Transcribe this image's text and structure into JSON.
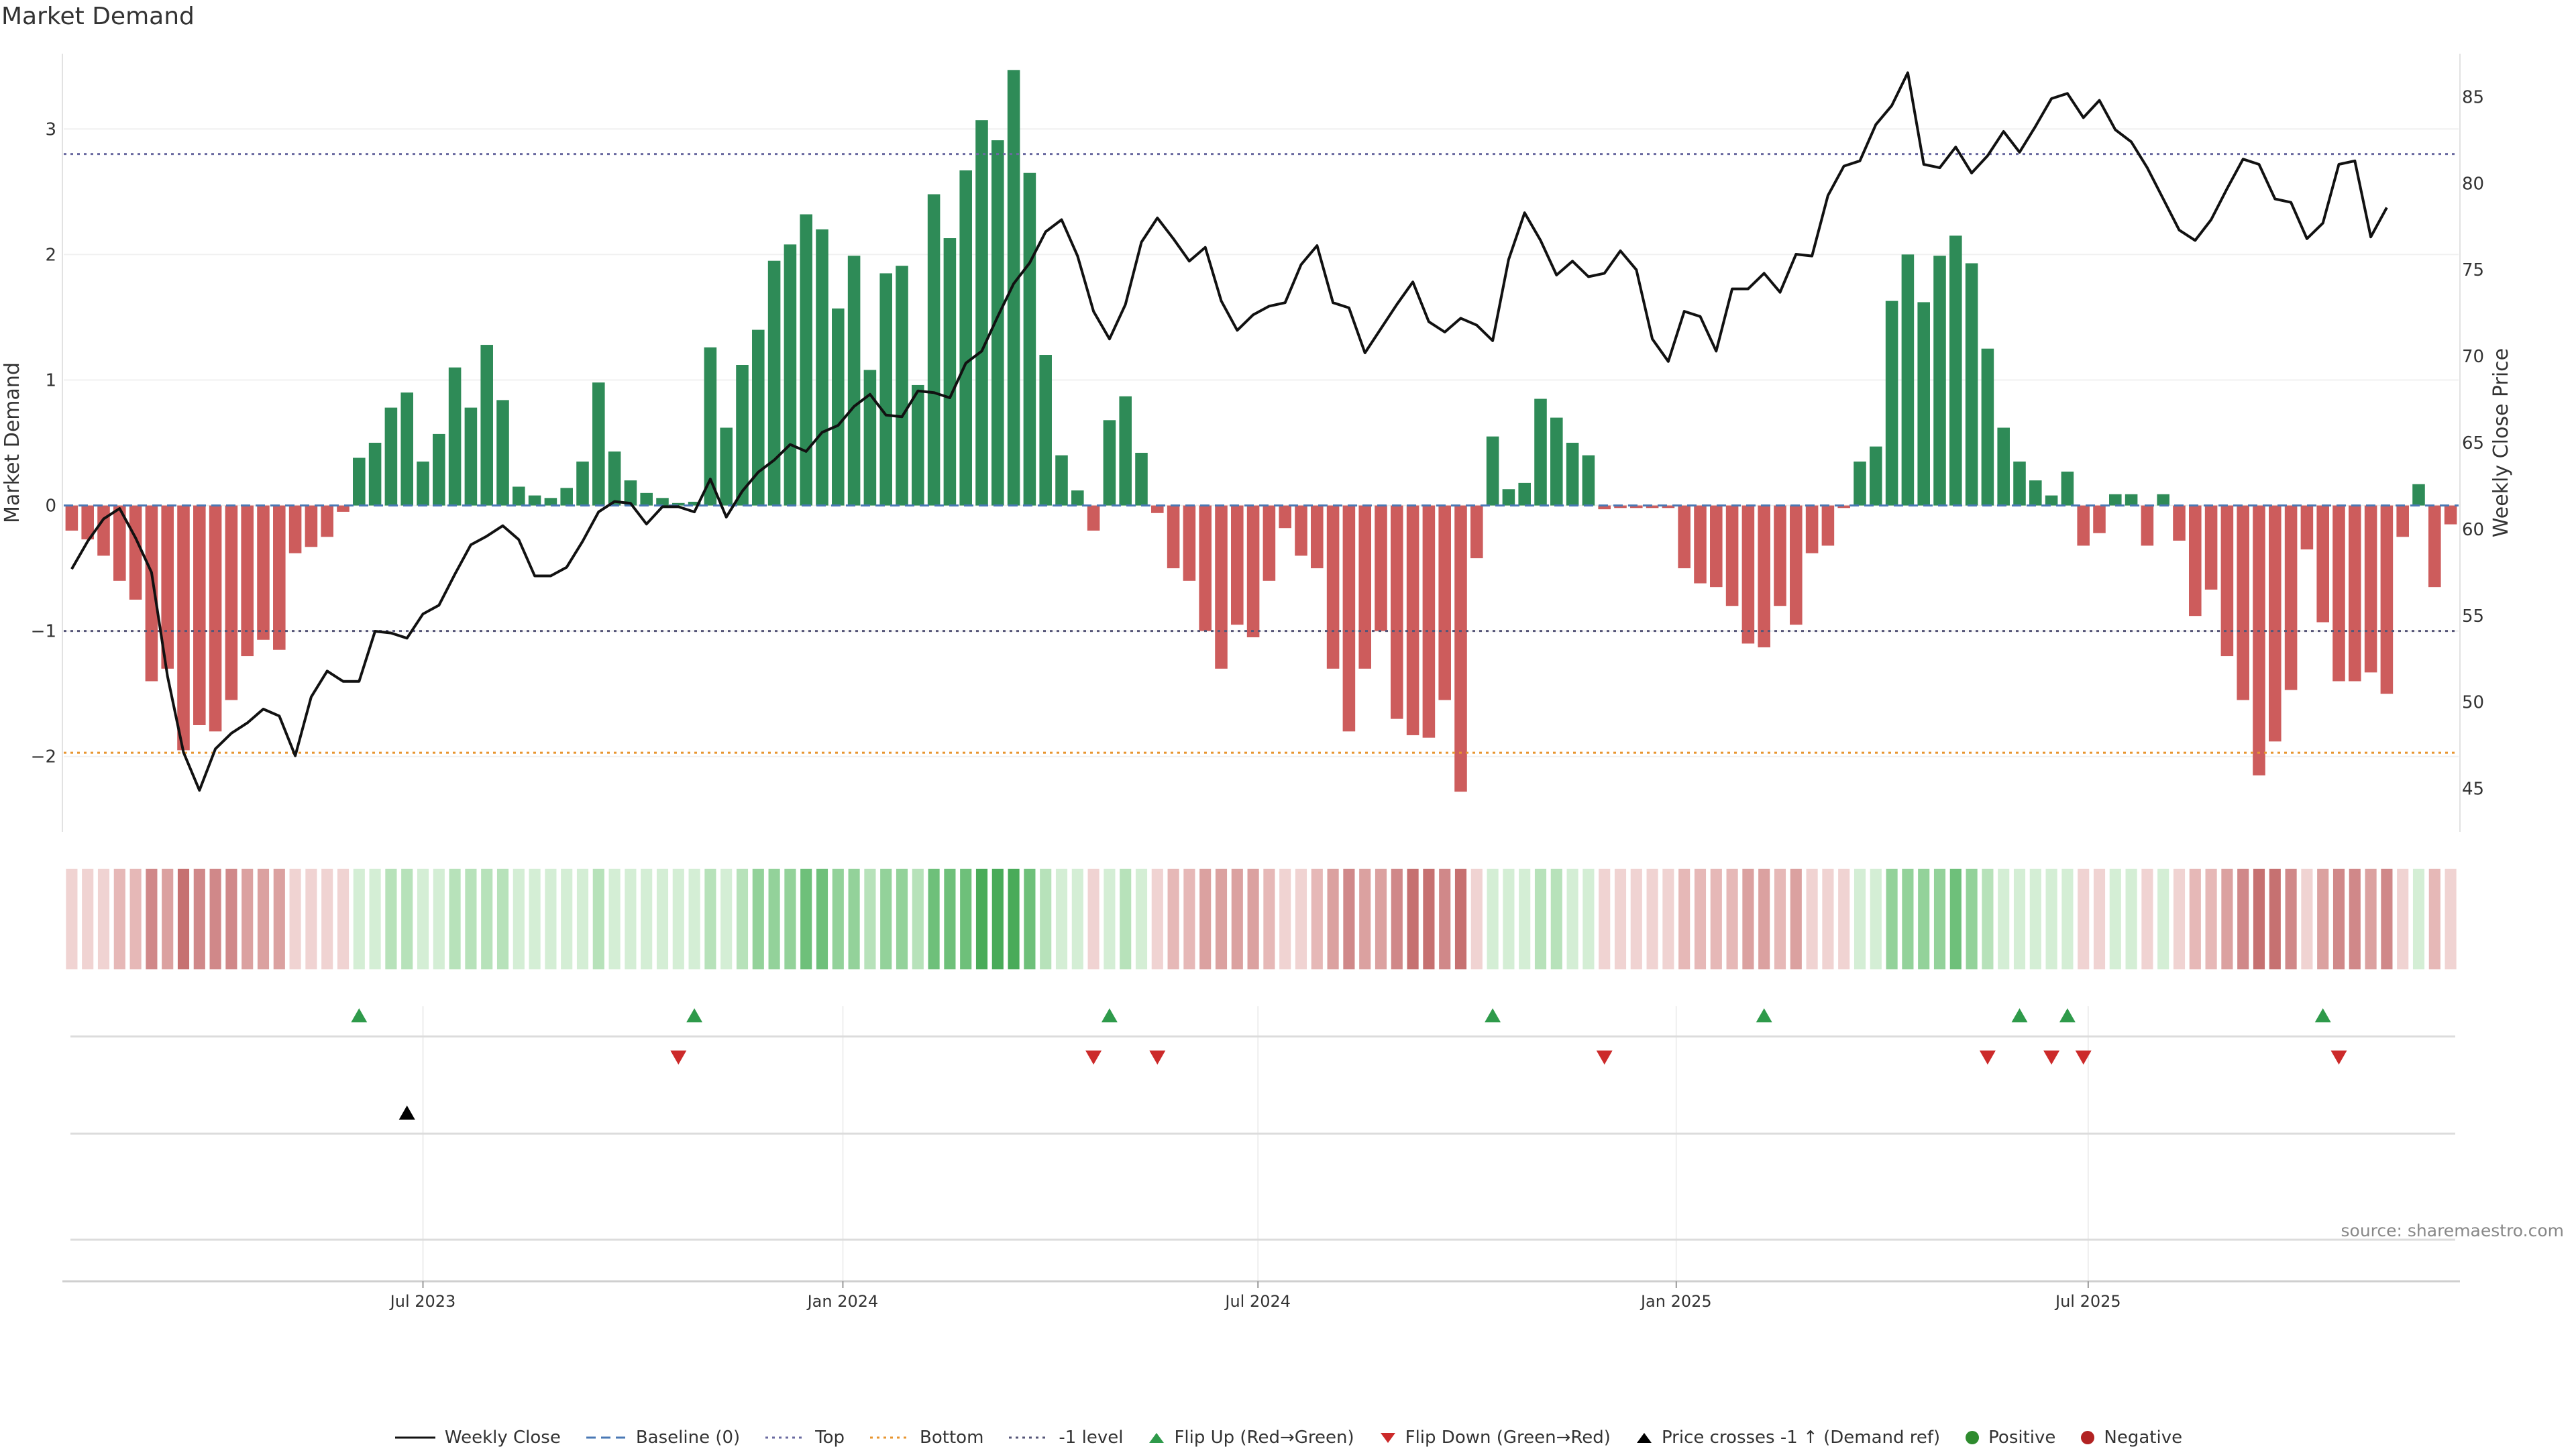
{
  "chart_data": {
    "type": "bar",
    "title": "Market Demand",
    "ylabel": "Market Demand",
    "y2label": "Weekly Close Price",
    "ylim": [
      -2.6,
      3.6
    ],
    "y2lim": [
      42.5,
      87.5
    ],
    "yticks": [
      -2,
      -1,
      0,
      1,
      2,
      3
    ],
    "yticklabels": [
      "−2",
      "−1",
      "0",
      "1",
      "2",
      "3"
    ],
    "y2ticks": [
      45,
      50,
      55,
      60,
      65,
      70,
      75,
      80,
      85
    ],
    "xticks": [
      {
        "label": "Jul 2023",
        "index": 22.5
      },
      {
        "label": "Jan 2024",
        "index": 48.8
      },
      {
        "label": "Jul 2024",
        "index": 74.8
      },
      {
        "label": "Jan 2025",
        "index": 101.0
      },
      {
        "label": "Jul 2025",
        "index": 126.8
      }
    ],
    "reference_lines": {
      "top": 2.8,
      "bottom": -1.97,
      "minus_one": -1.0,
      "baseline": 0
    },
    "demand": [
      -0.2,
      -0.27,
      -0.4,
      -0.6,
      -0.75,
      -1.4,
      -1.3,
      -1.95,
      -1.75,
      -1.8,
      -1.55,
      -1.2,
      -1.07,
      -1.15,
      -0.38,
      -0.33,
      -0.25,
      -0.05,
      0.38,
      0.5,
      0.78,
      0.9,
      0.35,
      0.57,
      1.1,
      0.78,
      1.28,
      0.84,
      0.15,
      0.08,
      0.06,
      0.14,
      0.35,
      0.98,
      0.43,
      0.2,
      0.1,
      0.06,
      0.02,
      0.03,
      1.26,
      0.62,
      1.12,
      1.4,
      1.95,
      2.08,
      2.32,
      2.2,
      1.57,
      1.99,
      1.08,
      1.85,
      1.91,
      0.96,
      2.48,
      2.13,
      2.67,
      3.07,
      2.91,
      3.47,
      2.65,
      1.2,
      0.4,
      0.12,
      -0.2,
      0.68,
      0.87,
      0.42,
      -0.06,
      -0.5,
      -0.6,
      -1.0,
      -1.3,
      -0.95,
      -1.05,
      -0.6,
      -0.18,
      -0.4,
      -0.5,
      -1.3,
      -1.8,
      -1.3,
      -1.0,
      -1.7,
      -1.83,
      -1.85,
      -1.55,
      -2.28,
      -0.42,
      0.55,
      0.13,
      0.18,
      0.85,
      0.7,
      0.5,
      0.4,
      -0.03,
      -0.02,
      -0.02,
      -0.02,
      -0.02,
      -0.5,
      -0.62,
      -0.65,
      -0.8,
      -1.1,
      -1.13,
      -0.8,
      -0.95,
      -0.38,
      -0.32,
      -0.02,
      0.35,
      0.47,
      1.63,
      2.0,
      1.62,
      1.99,
      2.15,
      1.93,
      1.25,
      0.62,
      0.35,
      0.2,
      0.08,
      0.27,
      -0.32,
      -0.22,
      0.09,
      0.09,
      -0.32,
      0.09,
      -0.28,
      -0.88,
      -0.67,
      -1.2,
      -1.55,
      -2.15,
      -1.88,
      -1.47,
      -0.35,
      -0.93,
      -1.4,
      -1.4,
      -1.33,
      -1.5,
      -0.25,
      0.17,
      -0.65,
      -0.15
    ],
    "price": [
      57.7,
      59.3,
      60.6,
      61.2,
      59.5,
      57.5,
      51.5,
      47.1,
      44.9,
      47.3,
      48.2,
      48.8,
      49.6,
      49.2,
      46.9,
      50.3,
      51.8,
      51.2,
      51.2,
      54.1,
      54.0,
      53.7,
      55.1,
      55.6,
      57.4,
      59.1,
      59.6,
      60.2,
      59.4,
      57.3,
      57.3,
      57.8,
      59.3,
      61.0,
      61.6,
      61.5,
      60.3,
      61.3,
      61.3,
      61.0,
      62.9,
      60.7,
      62.2,
      63.3,
      64.0,
      64.9,
      64.5,
      65.6,
      66.0,
      67.1,
      67.8,
      66.6,
      66.5,
      68.0,
      67.9,
      67.6,
      69.6,
      70.3,
      72.3,
      74.2,
      75.4,
      77.2,
      77.9,
      75.8,
      72.6,
      71.0,
      73.0,
      76.6,
      78.0,
      76.8,
      75.5,
      76.3,
      73.2,
      71.5,
      72.4,
      72.9,
      73.1,
      75.3,
      76.4,
      73.1,
      72.8,
      70.2,
      71.6,
      73.0,
      74.3,
      72.0,
      71.4,
      72.2,
      71.8,
      70.9,
      75.6,
      78.3,
      76.7,
      74.7,
      75.5,
      74.6,
      74.8,
      76.1,
      75.0,
      71.0,
      69.7,
      72.6,
      72.3,
      70.3,
      73.9,
      73.9,
      74.8,
      73.7,
      75.9,
      75.8,
      79.3,
      81.0,
      81.3,
      83.4,
      84.5,
      86.4,
      81.1,
      80.9,
      82.1,
      80.6,
      81.6,
      83.0,
      81.8,
      83.3,
      84.9,
      85.2,
      83.8,
      84.8,
      83.1,
      82.4,
      80.9,
      79.1,
      77.3,
      76.7,
      77.9,
      79.7,
      81.4,
      81.1,
      79.1,
      78.9,
      76.8,
      77.7,
      81.1,
      81.3,
      76.9,
      78.6
    ],
    "heat_colors": {
      "green": [
        "#d4eed5",
        "#b7e2ba",
        "#93d29a",
        "#6ec07a",
        "#49ab59"
      ],
      "red": [
        "#f0d3d2",
        "#e6b8b7",
        "#dba1a0",
        "#d08889",
        "#c67171"
      ]
    },
    "flip_up": [
      18,
      39,
      65,
      89,
      106,
      122,
      125,
      141
    ],
    "flip_down": [
      38,
      64,
      68,
      96,
      120,
      124,
      126,
      142
    ],
    "price_cross": [
      21
    ],
    "colors": {
      "positive_bar": "#2e8b57",
      "negative_bar": "#cd5c5c",
      "price_line": "#111111",
      "baseline": "#4a78b5",
      "top": "#6a6aa0",
      "bottom": "#e8952f",
      "minus_one": "#555577",
      "flip_up": "#2e9a4a",
      "flip_down": "#cc2a2a",
      "cross": "#000000",
      "positive_dot": "#2e8b2e",
      "negative_dot": "#b22222"
    }
  },
  "source": "source: sharemaestro.com",
  "legend": [
    {
      "key": "weekly-close",
      "label": "Weekly Close"
    },
    {
      "key": "baseline",
      "label": "Baseline (0)"
    },
    {
      "key": "top",
      "label": "Top"
    },
    {
      "key": "bottom",
      "label": "Bottom"
    },
    {
      "key": "minus-one",
      "label": "-1 level"
    },
    {
      "key": "flip-up",
      "label": "Flip Up (Red→Green)"
    },
    {
      "key": "flip-down",
      "label": "Flip Down (Green→Red)"
    },
    {
      "key": "price-cross",
      "label": "Price crosses -1 ↑ (Demand ref)"
    },
    {
      "key": "positive",
      "label": "Positive"
    },
    {
      "key": "negative",
      "label": "Negative"
    }
  ]
}
